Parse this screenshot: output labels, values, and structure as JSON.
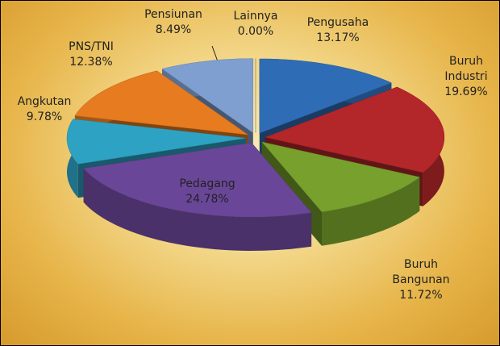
{
  "chart_data": {
    "type": "pie",
    "categories": [
      "Lainnya",
      "Pengusaha",
      "Buruh Industri",
      "Buruh Bangunan",
      "Pedagang",
      "Angkutan",
      "PNS/TNI",
      "Pensiunan"
    ],
    "values": [
      0.0,
      13.17,
      19.69,
      11.72,
      24.78,
      9.78,
      12.38,
      8.49
    ],
    "value_labels": [
      "0.00%",
      "13.17%",
      "19.69%",
      "11.72%",
      "24.78%",
      "9.78%",
      "12.38%",
      "8.49%"
    ],
    "colors": [
      "#9a9a9a",
      "#2f6cb6",
      "#b3262a",
      "#77a02c",
      "#6a4698",
      "#2ea2c3",
      "#e67b1f",
      "#7f9fd0"
    ]
  }
}
